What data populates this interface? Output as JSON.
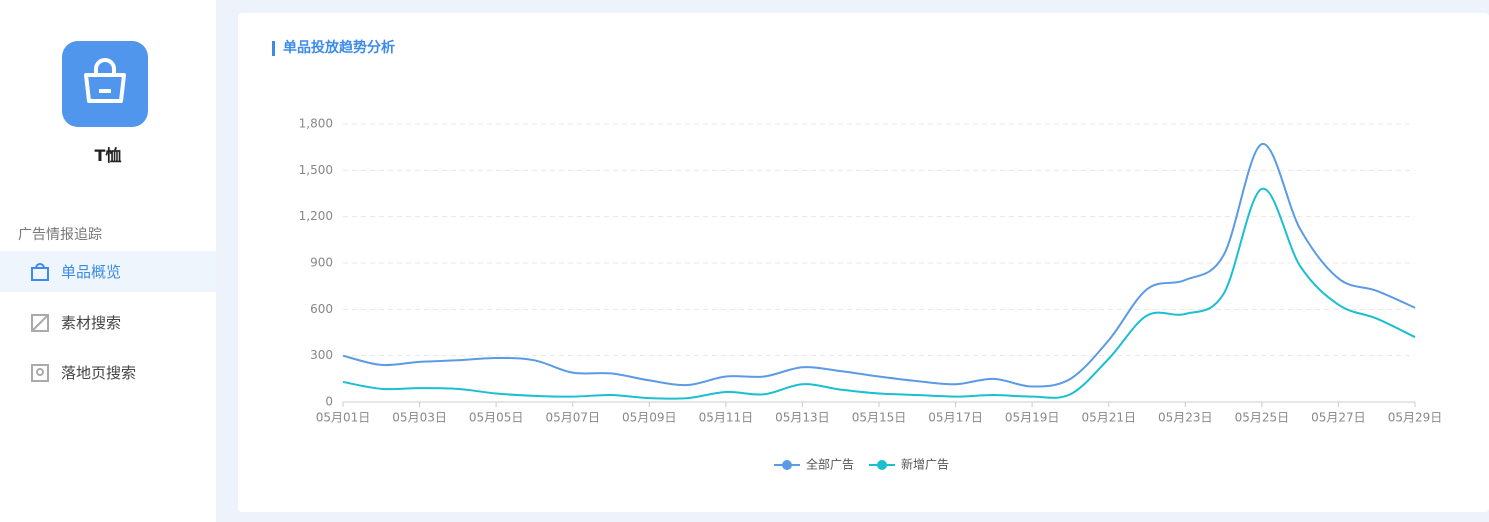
{
  "sidebar": {
    "product": "T恤",
    "section": "广告情报追踪",
    "menu": [
      "单品概览",
      "素材搜索",
      "落地页搜索"
    ]
  },
  "chart_data": {
    "type": "line",
    "title": "单品投放趋势分析",
    "categories": [
      "05月01日",
      null,
      "05月03日",
      null,
      "05月05日",
      null,
      "05月07日",
      null,
      "05月09日",
      null,
      "05月11日",
      null,
      "05月13日",
      null,
      "05月15日",
      null,
      "05月17日",
      null,
      "05月19日",
      null,
      "05月21日",
      null,
      "05月23日",
      null,
      "05月25日",
      null,
      "05月27日",
      null,
      "05月29日"
    ],
    "series": [
      {
        "name": "全部广告",
        "color": "#5b9be6",
        "values": [
          300,
          240,
          260,
          270,
          285,
          270,
          190,
          185,
          140,
          110,
          165,
          165,
          225,
          200,
          165,
          135,
          115,
          150,
          100,
          150,
          400,
          730,
          790,
          950,
          1670,
          1120,
          800,
          720,
          610
        ]
      },
      {
        "name": "新增广告",
        "color": "#1bbfd0",
        "values": [
          130,
          85,
          90,
          85,
          55,
          40,
          35,
          45,
          25,
          25,
          65,
          50,
          115,
          80,
          55,
          45,
          35,
          45,
          35,
          50,
          280,
          560,
          570,
          700,
          1380,
          880,
          630,
          540,
          420
        ]
      }
    ],
    "ylim": [
      0,
      1800
    ],
    "yticks": [
      0,
      300,
      600,
      900,
      {
        "value": 1200,
        "label": "1,200"
      },
      {
        "value": 1500,
        "label": "1,500"
      },
      {
        "value": 1800,
        "label": "1,800"
      }
    ],
    "grid": true,
    "legend": "bottom"
  }
}
